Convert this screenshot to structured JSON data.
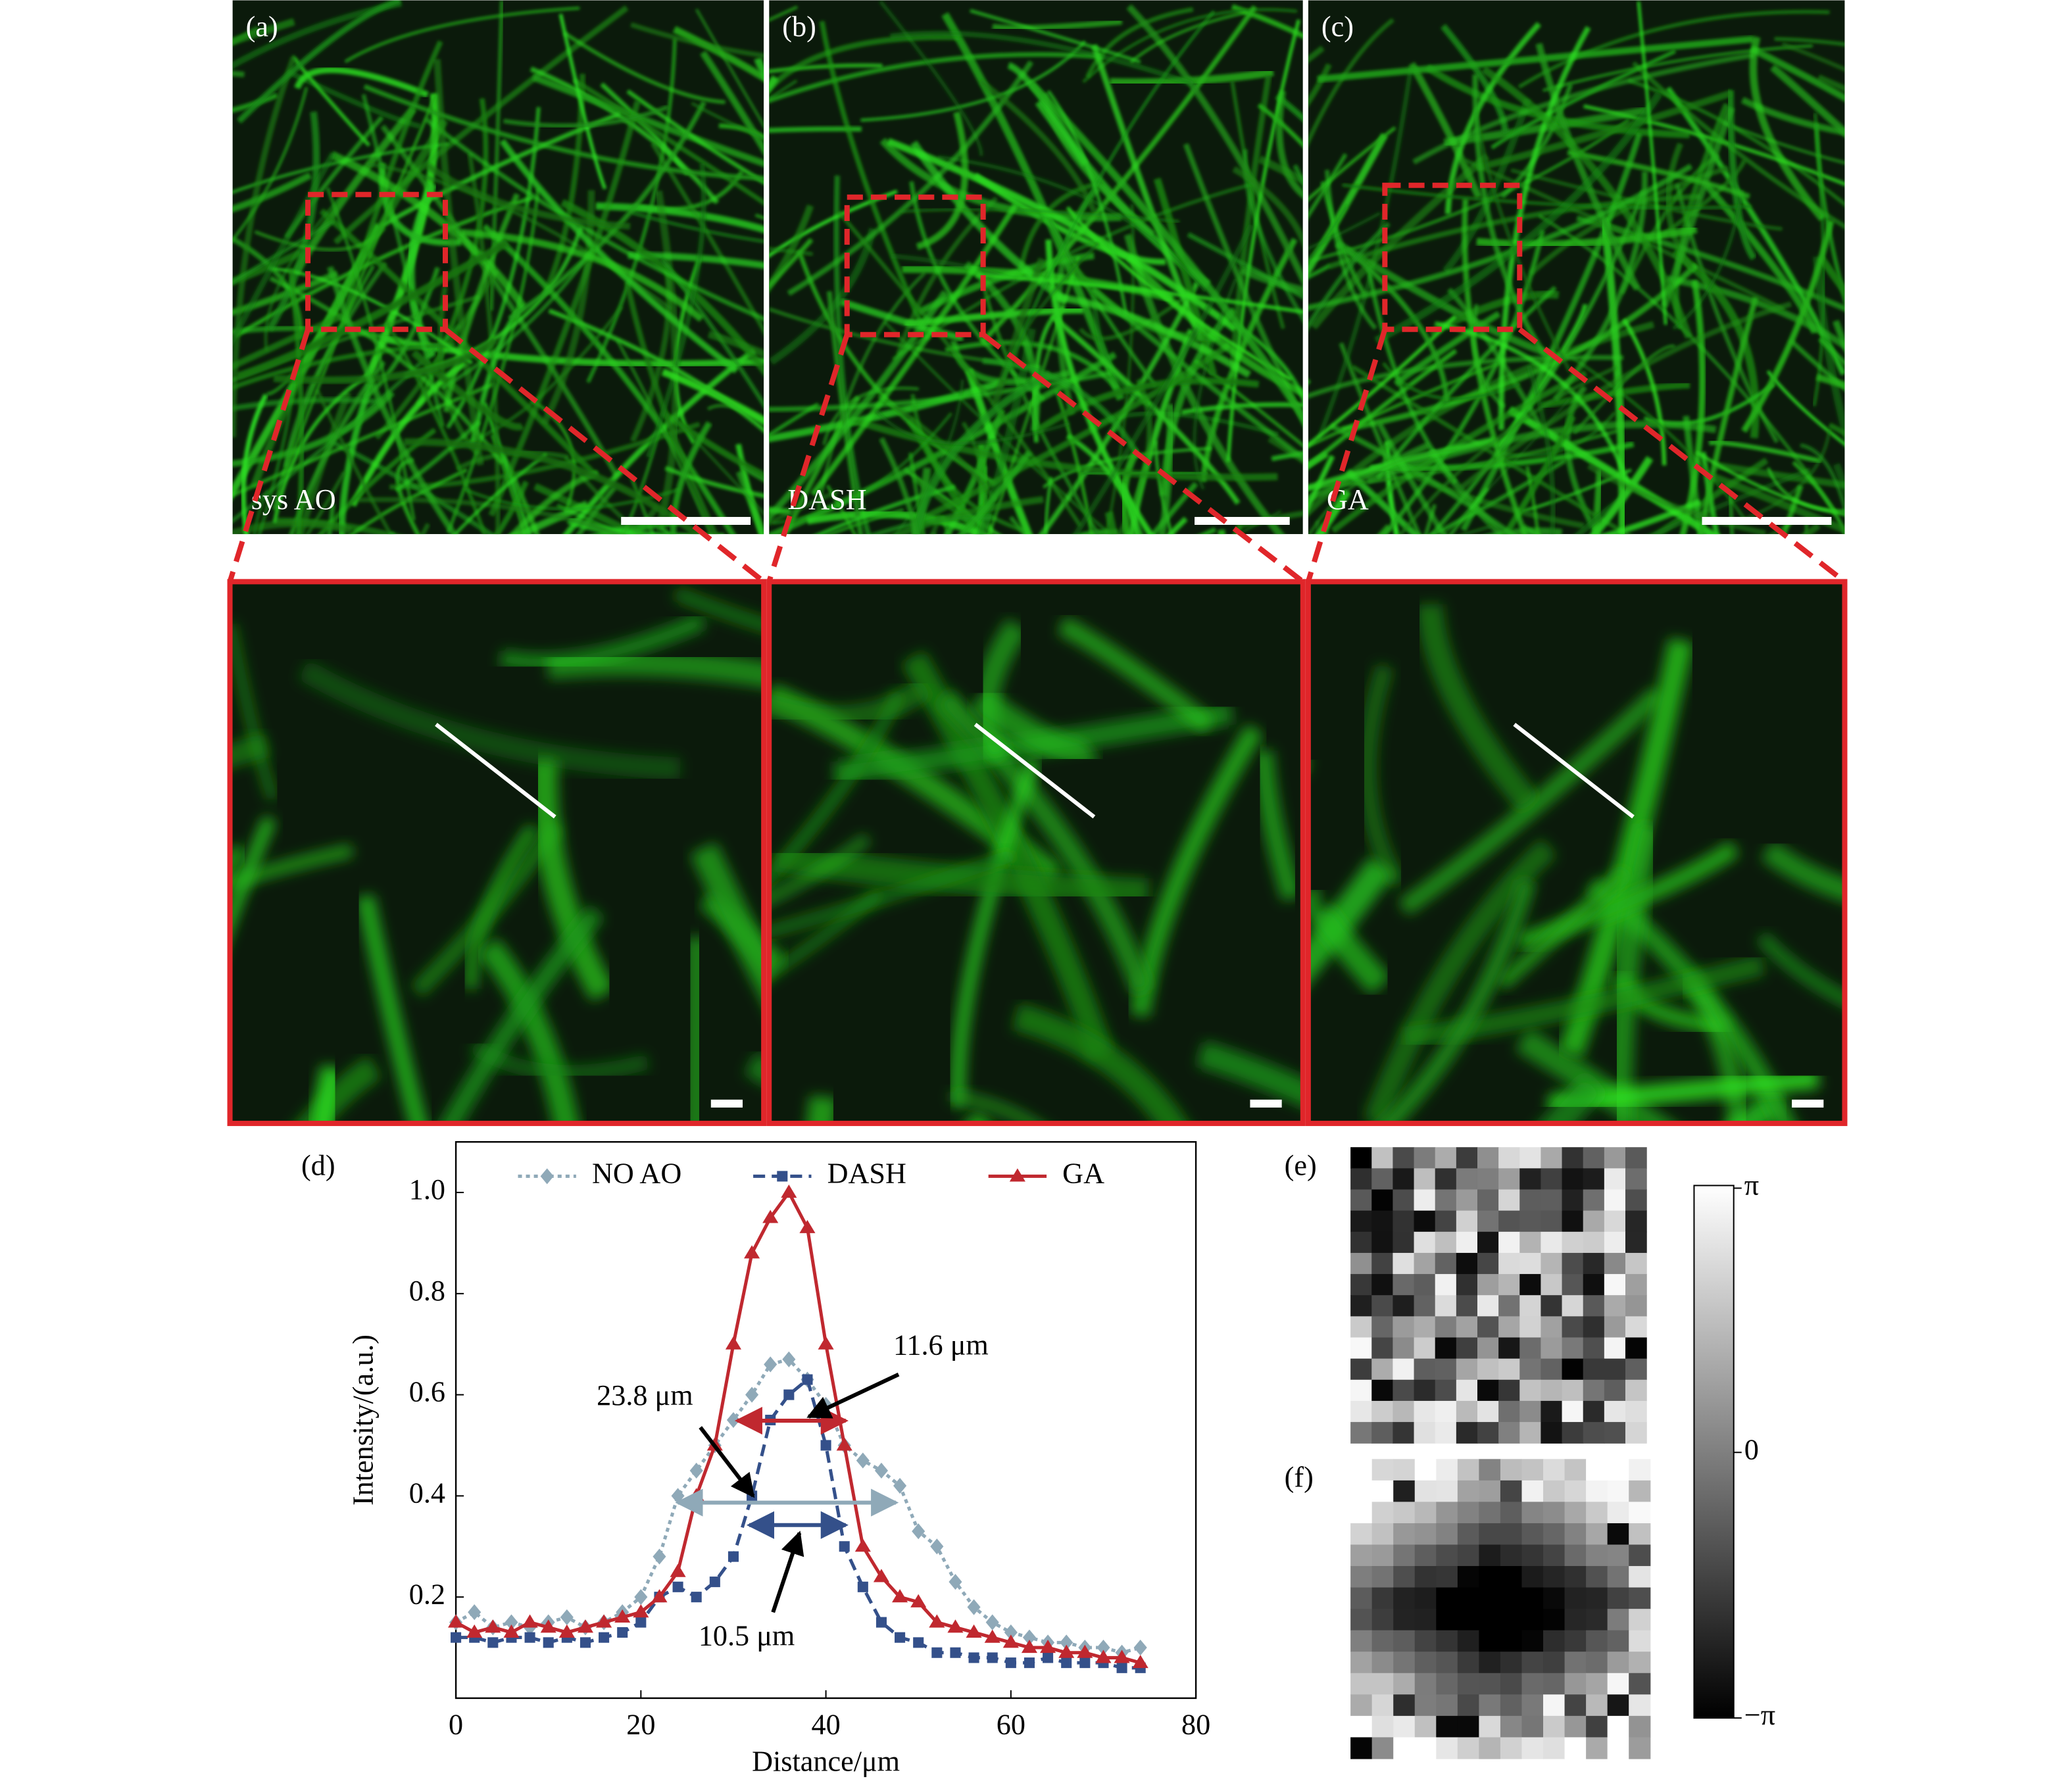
{
  "panels": {
    "labels": [
      "(a)",
      "(b)",
      "(c)"
    ],
    "methods": [
      "sys AO",
      "DASH",
      "GA"
    ],
    "phase_labels": [
      "(e)",
      "(f)"
    ],
    "colorbar": {
      "top": "π",
      "middle": "0",
      "bottom": "−π"
    }
  },
  "chart_data": {
    "type": "line",
    "label": "(d)",
    "x_label": "Distance/μm",
    "y_label": "Intensity/(a.u.)",
    "x": [
      0,
      2,
      4,
      6,
      8,
      10,
      12,
      14,
      16,
      18,
      20,
      22,
      24,
      26,
      28,
      30,
      32,
      34,
      36,
      38,
      40,
      42,
      44,
      46,
      48,
      50,
      52,
      54,
      56,
      58,
      60,
      62,
      64,
      66,
      68,
      70,
      72,
      74
    ],
    "series": [
      {
        "name": "NO AO",
        "color": "#8fa9b8",
        "marker": "diamond",
        "line_style": "dotted",
        "values": [
          0.15,
          0.17,
          0.14,
          0.15,
          0.14,
          0.15,
          0.16,
          0.14,
          0.15,
          0.17,
          0.2,
          0.28,
          0.4,
          0.45,
          0.5,
          0.55,
          0.6,
          0.66,
          0.67,
          0.63,
          0.58,
          0.5,
          0.47,
          0.45,
          0.42,
          0.33,
          0.3,
          0.23,
          0.18,
          0.15,
          0.13,
          0.12,
          0.11,
          0.11,
          0.1,
          0.1,
          0.09,
          0.1
        ]
      },
      {
        "name": "DASH",
        "color": "#34508a",
        "marker": "square",
        "line_style": "dashed",
        "values": [
          0.12,
          0.12,
          0.11,
          0.12,
          0.12,
          0.11,
          0.12,
          0.11,
          0.12,
          0.13,
          0.15,
          0.2,
          0.22,
          0.2,
          0.23,
          0.28,
          0.4,
          0.55,
          0.6,
          0.63,
          0.5,
          0.3,
          0.22,
          0.15,
          0.12,
          0.11,
          0.09,
          0.09,
          0.08,
          0.08,
          0.07,
          0.07,
          0.08,
          0.07,
          0.07,
          0.07,
          0.06,
          0.06
        ]
      },
      {
        "name": "GA",
        "color": "#c0282f",
        "marker": "triangle",
        "line_style": "solid",
        "values": [
          0.15,
          0.13,
          0.14,
          0.13,
          0.15,
          0.14,
          0.13,
          0.14,
          0.15,
          0.16,
          0.17,
          0.2,
          0.25,
          0.4,
          0.5,
          0.7,
          0.88,
          0.95,
          1.0,
          0.93,
          0.7,
          0.5,
          0.3,
          0.24,
          0.2,
          0.19,
          0.15,
          0.14,
          0.13,
          0.12,
          0.11,
          0.1,
          0.1,
          0.09,
          0.09,
          0.08,
          0.08,
          0.07
        ]
      }
    ],
    "xlim": [
      0,
      80
    ],
    "xticks": [
      0,
      20,
      40,
      60,
      80
    ],
    "ylim": [
      0,
      1.1
    ],
    "yticks": [
      0.2,
      0.4,
      0.6,
      0.8,
      {
        "value": 1,
        "label": "1.0"
      }
    ],
    "legend": "top",
    "annotations": [
      "23.8 μm",
      "11.6 μm",
      "10.5 μm"
    ]
  }
}
